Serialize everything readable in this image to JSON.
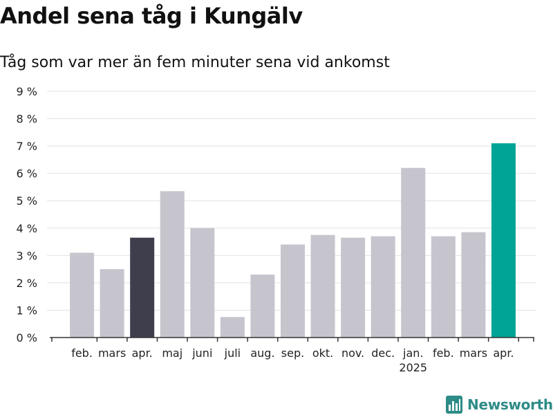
{
  "title": "Andel sena tåg i Kungälv",
  "subtitle": "Tåg som var mer än fem minuter sena vid ankomst",
  "brand": "Newsworthy",
  "colors": {
    "bar_default": "#c6c5ce",
    "bar_previous_year": "#3f3e4d",
    "bar_latest": "#00a497",
    "grid": "#e2e2e2",
    "axis": "#333333",
    "text": "#222222",
    "brand": "#2e8b87"
  },
  "chart_data": {
    "type": "bar",
    "title": "Andel sena tåg i Kungälv",
    "subtitle": "Tåg som var mer än fem minuter sena vid ankomst",
    "categories": [
      "feb.",
      "mars",
      "apr.",
      "maj",
      "juni",
      "juli",
      "aug.",
      "sep.",
      "okt.",
      "nov.",
      "dec.",
      "jan.",
      "feb.",
      "mars",
      "apr."
    ],
    "year_labels": [
      {
        "index": 11,
        "label": "2025"
      }
    ],
    "values": [
      3.1,
      2.5,
      3.65,
      5.35,
      4.0,
      0.75,
      2.3,
      3.4,
      3.75,
      3.65,
      3.7,
      6.2,
      3.7,
      3.85,
      7.1
    ],
    "highlight": {
      "previous_year_index": 2,
      "latest_index": 14
    },
    "ylim": [
      0,
      9
    ],
    "yticks": [
      0,
      1,
      2,
      3,
      4,
      5,
      6,
      7,
      8,
      9
    ],
    "ytick_suffix": " %",
    "xlabel": "",
    "ylabel": "",
    "grid": true
  }
}
